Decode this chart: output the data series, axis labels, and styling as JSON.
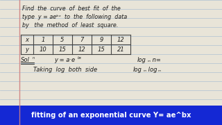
{
  "bg_color": "#e8e4d8",
  "line_color": "#a0b8d0",
  "text_color": "#1a1a1a",
  "blue_banner_color": "#1428d4",
  "banner_text": "fitting of an exponential curve Y= ae^bx",
  "banner_text_color": "#ffffff",
  "margin_color": "#d08080",
  "title_lines": [
    "Find  the  curve  of  best  fit  of  the",
    "type  y = aeᵇˣ  to  the  following  data",
    "by   the  method  of  least  square."
  ],
  "table_x_label": "x",
  "table_y_label": "y",
  "table_x_values": [
    "1",
    "5",
    "7",
    "9",
    "12"
  ],
  "table_y_values": [
    "10",
    "15",
    "12",
    "15",
    "21"
  ],
  "sol_text": "Sol",
  "sol_sup": "n",
  "eq_text": "y = a·e",
  "eq_sup": "bx",
  "log_right1": "log",
  "log_right1_sub": "m",
  "log_right1_after": " n=",
  "taking_text": "Taking  log  both  side",
  "log_right2a": "log",
  "log_right2a_sub": "m",
  "log_right2b": " log",
  "log_right2b_sub": "m"
}
